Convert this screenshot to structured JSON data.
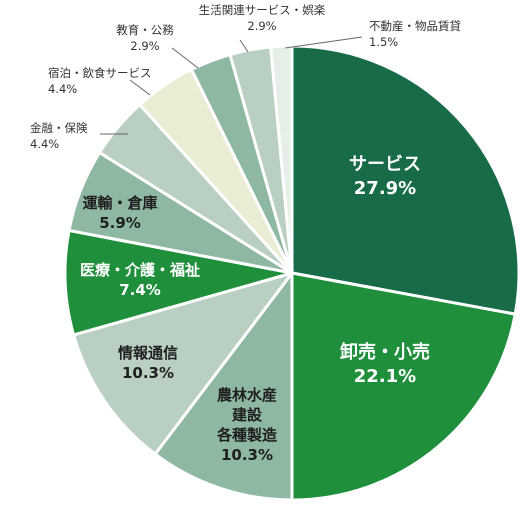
{
  "chart_data": {
    "type": "pie",
    "unit": "%",
    "start_angle_deg": 0,
    "direction": "clockwise",
    "slices": [
      {
        "label": "サービス",
        "value": 27.9,
        "value_text": "27.9%",
        "color": "#176b47",
        "text_color": "#ffffff"
      },
      {
        "label": "卸売・小売",
        "value": 22.1,
        "value_text": "22.1%",
        "color": "#1f8f3c",
        "text_color": "#ffffff"
      },
      {
        "label": "農林水産\n建設\n各種製造",
        "value": 10.3,
        "value_text": "10.3%",
        "color": "#8fb8a2",
        "text_color": "#1f1f1f"
      },
      {
        "label": "情報通信",
        "value": 10.3,
        "value_text": "10.3%",
        "color": "#b9cfc2",
        "text_color": "#1f1f1f"
      },
      {
        "label": "医療・介護・福祉",
        "value": 7.4,
        "value_text": "7.4%",
        "color": "#1f8f3c",
        "text_color": "#ffffff"
      },
      {
        "label": "運輸・倉庫",
        "value": 5.9,
        "value_text": "5.9%",
        "color": "#8fb8a2",
        "text_color": "#1f1f1f"
      },
      {
        "label": "金融・保険",
        "value": 4.4,
        "value_text": "4.4%",
        "color": "#b9cfc2",
        "text_color": "#333333"
      },
      {
        "label": "宿泊・飲食サービス",
        "value": 4.4,
        "value_text": "4.4%",
        "color": "#e9edd4",
        "text_color": "#333333"
      },
      {
        "label": "教育・公務",
        "value": 2.9,
        "value_text": "2.9%",
        "color": "#8fb8a2",
        "text_color": "#333333"
      },
      {
        "label": "生活関連サービス・娯楽",
        "value": 2.9,
        "value_text": "2.9%",
        "color": "#b9cfc2",
        "text_color": "#333333"
      },
      {
        "label": "不動産・物品賃貸",
        "value": 1.5,
        "value_text": "1.5%",
        "color": "#e6efe7",
        "text_color": "#333333"
      }
    ]
  }
}
